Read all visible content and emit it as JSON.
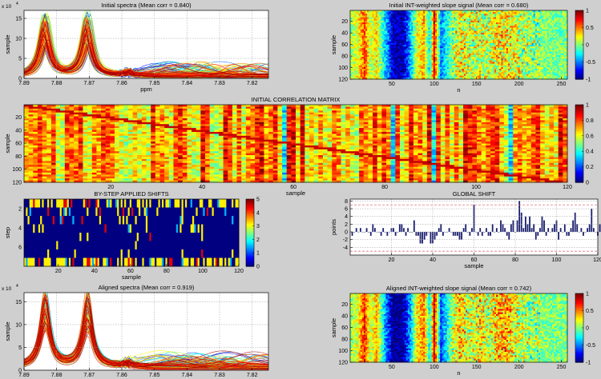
{
  "figure_background": "#cfcfcf",
  "colormap": "jet",
  "chart_data": [
    {
      "id": "initial-spectra",
      "type": "line",
      "title": "Initial spectra (Mean corr = 0.840)",
      "xlabel": "ppm",
      "ylabel": "sample",
      "y_exponent": "x 10",
      "y_exponent_power": "4",
      "xlim": [
        7.89,
        7.815
      ],
      "ylim": [
        0,
        17
      ],
      "x_ticks": [
        "7.89",
        "7.88",
        "7.87",
        "7.86",
        "7.85",
        "7.84",
        "7.83",
        "7.82"
      ],
      "x_tick_values": [
        7.89,
        7.88,
        7.87,
        7.86,
        7.85,
        7.84,
        7.83,
        7.82
      ],
      "y_ticks": [
        "0",
        "5",
        "10",
        "15"
      ],
      "y_tick_values": [
        0,
        5,
        10,
        15
      ],
      "peaks_ppm": [
        7.8835,
        7.8705
      ],
      "peak_height_range": [
        7,
        16
      ],
      "n_series": 120,
      "grid": true
    },
    {
      "id": "initial-int-slope",
      "type": "heatmap",
      "title": "Initial INT-weighted slope signal (Mean corr = 0.680)",
      "xlabel": "n",
      "ylabel": "sample",
      "xlim": [
        1,
        257
      ],
      "ylim": [
        1,
        120
      ],
      "x_ticks": [
        "50",
        "100",
        "150",
        "200",
        "250"
      ],
      "x_tick_values": [
        50,
        100,
        150,
        200,
        250
      ],
      "y_ticks": [
        "20",
        "40",
        "60",
        "80",
        "100",
        "120"
      ],
      "y_tick_values": [
        20,
        40,
        60,
        80,
        100,
        120
      ],
      "column_profile_n": [
        1,
        10,
        18,
        25,
        32,
        42,
        52,
        62,
        72,
        80,
        88,
        95,
        100,
        108,
        118,
        130,
        142,
        155,
        165,
        175,
        185,
        195,
        205,
        215,
        225,
        240,
        257
      ],
      "column_profile_value": [
        0.05,
        0.2,
        0.6,
        0.1,
        0.3,
        -0.3,
        -0.9,
        -0.95,
        -0.4,
        0.2,
        0.4,
        -0.3,
        0.8,
        -0.5,
        -0.1,
        0.3,
        0.1,
        0.2,
        0.1,
        0.3,
        0.3,
        0.2,
        0.1,
        0.05,
        0.0,
        0.0,
        0.0
      ],
      "colorbar": {
        "ticks": [
          "1",
          "0.5",
          "0",
          "-0.5",
          "-1"
        ],
        "tick_values": [
          1,
          0.5,
          0,
          -0.5,
          -1
        ],
        "clim": [
          -1,
          1
        ]
      }
    },
    {
      "id": "initial-correlation-matrix",
      "type": "heatmap",
      "title": "INITIAL CORRELATION MATRIX",
      "xlabel": "sample",
      "ylabel": "sample",
      "xlim": [
        1,
        120
      ],
      "ylim": [
        1,
        120
      ],
      "x_ticks": [
        "20",
        "40",
        "60",
        "80",
        "100",
        "120"
      ],
      "x_tick_values": [
        20,
        40,
        60,
        80,
        100,
        120
      ],
      "y_ticks": [
        "20",
        "40",
        "60",
        "80",
        "100",
        "120"
      ],
      "y_tick_values": [
        20,
        40,
        60,
        80,
        100,
        120
      ],
      "low_corr_samples": [
        58,
        82,
        91,
        108
      ],
      "colorbar": {
        "ticks": [
          "1",
          "0.8",
          "0.6",
          "0.4",
          "0.2",
          "0"
        ],
        "tick_values": [
          1,
          0.8,
          0.6,
          0.4,
          0.2,
          0
        ],
        "clim": [
          0,
          1
        ]
      }
    },
    {
      "id": "by-step-applied-shifts",
      "type": "heatmap",
      "title": "BY-STEP APPLIED SHIFTS",
      "xlabel": "sample",
      "ylabel": "step",
      "xlim": [
        1,
        120
      ],
      "ylim": [
        1,
        8
      ],
      "x_ticks": [
        "20",
        "40",
        "60",
        "80",
        "100",
        "120"
      ],
      "x_tick_values": [
        20,
        40,
        60,
        80,
        100,
        120
      ],
      "y_ticks": [
        "2",
        "4",
        "6"
      ],
      "y_tick_values": [
        2,
        4,
        6
      ],
      "colorbar": {
        "ticks": [
          "5",
          "4",
          "3",
          "2",
          "1",
          "0"
        ],
        "tick_values": [
          5,
          4,
          3,
          2,
          1,
          0
        ],
        "clim": [
          0,
          5
        ]
      }
    },
    {
      "id": "global-shift",
      "type": "bar",
      "title": "GLOBAL SHIFT",
      "xlabel": "sample",
      "ylabel": "points",
      "xlim": [
        0,
        120
      ],
      "ylim": [
        -6,
        8.5
      ],
      "x_ticks": [
        "20",
        "40",
        "60",
        "80",
        "100",
        "120"
      ],
      "x_tick_values": [
        20,
        40,
        60,
        80,
        100,
        120
      ],
      "y_ticks": [
        "-4",
        "-2",
        "0",
        "2",
        "4",
        "6",
        "8"
      ],
      "y_tick_values": [
        -4,
        -2,
        0,
        2,
        4,
        6,
        8
      ],
      "reference_lines": [
        7,
        -5
      ],
      "bar_color": "#1a1f6e",
      "reference_color": "#e0707a",
      "values": [
        -1,
        0,
        1,
        0,
        1,
        0,
        0,
        1,
        0,
        -1,
        2,
        1,
        0,
        0,
        -1,
        1,
        0,
        -1,
        0,
        1,
        1,
        -1,
        0,
        2,
        2,
        1,
        -1,
        1,
        0,
        0,
        3,
        -1,
        -1,
        -3,
        -3,
        -2,
        -1,
        0,
        -3,
        -3,
        -2,
        -1,
        1,
        2,
        -1,
        0,
        0,
        1,
        0,
        -1,
        -1,
        -1,
        -2,
        -2,
        1,
        2,
        0,
        -1,
        1,
        7,
        0,
        -1,
        1,
        -1,
        0,
        1,
        -1,
        -1,
        2,
        0,
        1,
        0,
        3,
        2,
        1,
        -1,
        -2,
        2,
        3,
        0,
        3,
        8,
        5,
        1,
        4,
        2,
        4,
        1,
        2,
        -2,
        -1,
        1,
        4,
        3,
        -1,
        1,
        0,
        1,
        2,
        3,
        -2,
        1,
        0,
        2,
        -1,
        -1,
        1,
        3,
        5,
        2,
        0,
        1,
        -1,
        0,
        1,
        2,
        6,
        1,
        0,
        -1,
        2,
        1
      ]
    },
    {
      "id": "aligned-spectra",
      "type": "line",
      "title": "Aligned spectra (Mean corr = 0.919)",
      "xlabel": "ppm",
      "ylabel": "sample",
      "y_exponent": "x 10",
      "y_exponent_power": "4",
      "xlim": [
        7.89,
        7.815
      ],
      "ylim": [
        0,
        17
      ],
      "x_ticks": [
        "7.89",
        "7.88",
        "7.87",
        "7.86",
        "7.85",
        "7.84",
        "7.83",
        "7.82"
      ],
      "x_tick_values": [
        7.89,
        7.88,
        7.87,
        7.86,
        7.85,
        7.84,
        7.83,
        7.82
      ],
      "y_ticks": [
        "0",
        "5",
        "10",
        "15"
      ],
      "y_tick_values": [
        0,
        5,
        10,
        15
      ],
      "peaks_ppm": [
        7.8835,
        7.8705
      ],
      "peak_height_range": [
        8,
        16.5
      ],
      "n_series": 120,
      "grid": true
    },
    {
      "id": "aligned-int-slope",
      "type": "heatmap",
      "title": "Aligned INT-weighted slope signal (Mean corr = 0.742)",
      "xlabel": "n",
      "ylabel": "sample",
      "xlim": [
        1,
        257
      ],
      "ylim": [
        1,
        120
      ],
      "x_ticks": [
        "50",
        "100",
        "150",
        "200",
        "250"
      ],
      "x_tick_values": [
        50,
        100,
        150,
        200,
        250
      ],
      "y_ticks": [
        "20",
        "40",
        "60",
        "80",
        "100",
        "120"
      ],
      "y_tick_values": [
        20,
        40,
        60,
        80,
        100,
        120
      ],
      "column_profile_n": [
        1,
        10,
        18,
        25,
        32,
        42,
        52,
        62,
        72,
        80,
        88,
        95,
        100,
        108,
        118,
        130,
        142,
        155,
        165,
        175,
        185,
        195,
        205,
        215,
        225,
        240,
        257
      ],
      "column_profile_value": [
        0.05,
        0.2,
        0.7,
        0.1,
        0.4,
        -0.4,
        -1,
        -1,
        -0.4,
        0.3,
        0.5,
        -0.3,
        0.9,
        -0.6,
        -0.1,
        0.4,
        0.1,
        0.3,
        0.1,
        0.4,
        0.4,
        0.2,
        0.1,
        0.05,
        0.0,
        0.0,
        0.0
      ],
      "colorbar": {
        "ticks": [
          "1",
          "0.5",
          "0",
          "-0.5",
          "-1"
        ],
        "tick_values": [
          1,
          0.5,
          0,
          -0.5,
          -1
        ],
        "clim": [
          -1,
          1
        ]
      }
    }
  ]
}
